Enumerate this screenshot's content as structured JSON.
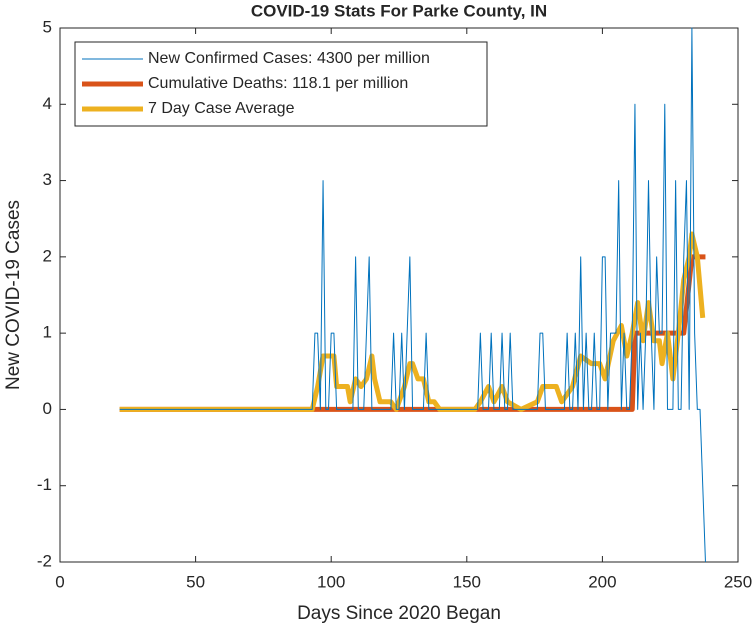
{
  "chart_data": {
    "type": "line",
    "title": "COVID-19 Stats For Parke County, IN",
    "xlabel": "Days Since 2020 Began",
    "ylabel": "New COVID-19 Cases",
    "xlim": [
      0,
      250
    ],
    "xticks": [
      0,
      50,
      100,
      150,
      200,
      250
    ],
    "ylim": [
      -2,
      5
    ],
    "yticks": [
      -2,
      -1,
      0,
      1,
      2,
      3,
      4,
      5
    ],
    "legend": "upper-left",
    "series": [
      {
        "name": "New Confirmed Cases: 4300 per million",
        "color": "#0072BD",
        "width": 1,
        "x": [
          22,
          93,
          94,
          95,
          96,
          97,
          98,
          99,
          100,
          101,
          102,
          103,
          104,
          105,
          106,
          107,
          108,
          109,
          110,
          111,
          112,
          113,
          114,
          115,
          116,
          117,
          118,
          119,
          120,
          121,
          122,
          123,
          124,
          125,
          126,
          127,
          128,
          129,
          130,
          131,
          132,
          133,
          134,
          135,
          136,
          137,
          138,
          139,
          140,
          141,
          142,
          143,
          144,
          145,
          146,
          147,
          148,
          149,
          150,
          151,
          152,
          153,
          154,
          155,
          156,
          157,
          158,
          159,
          160,
          161,
          162,
          163,
          164,
          165,
          166,
          167,
          168,
          169,
          170,
          171,
          172,
          173,
          174,
          175,
          176,
          177,
          178,
          179,
          180,
          181,
          182,
          183,
          184,
          185,
          186,
          187,
          188,
          189,
          190,
          191,
          192,
          193,
          194,
          195,
          196,
          197,
          198,
          199,
          200,
          201,
          202,
          203,
          204,
          205,
          206,
          207,
          208,
          209,
          210,
          211,
          212,
          213,
          214,
          215,
          216,
          217,
          218,
          219,
          220,
          221,
          222,
          223,
          224,
          225,
          226,
          227,
          228,
          229,
          230,
          231,
          232,
          233,
          234,
          235,
          236,
          237,
          238
        ],
        "values": [
          0,
          0,
          1,
          1,
          0,
          3,
          0,
          0,
          1,
          1,
          0,
          0,
          0,
          0,
          0,
          0,
          0,
          2,
          0,
          0,
          0,
          1,
          2,
          0,
          0,
          0,
          0,
          0,
          0,
          0,
          0,
          1,
          0,
          0,
          1,
          0,
          1,
          2,
          0,
          0,
          0,
          0,
          0,
          1,
          0,
          0,
          0,
          0,
          0,
          0,
          0,
          0,
          0,
          0,
          0,
          0,
          0,
          0,
          0,
          0,
          0,
          0,
          0,
          1,
          0,
          0,
          0,
          1,
          0,
          0,
          0,
          1,
          0,
          0,
          1,
          0,
          0,
          0,
          0,
          0,
          0,
          0,
          0,
          0,
          0,
          1,
          1,
          0,
          0,
          0,
          0,
          0,
          0,
          0,
          0,
          1,
          0,
          0,
          1,
          0,
          2,
          0,
          1,
          0,
          0,
          1,
          0,
          0,
          2,
          2,
          0,
          1,
          1,
          1,
          3,
          0,
          1,
          0,
          0,
          1,
          4,
          0,
          1,
          0,
          1,
          3,
          1,
          0,
          2,
          1,
          1,
          4,
          0,
          0,
          0,
          3,
          0,
          0,
          2,
          3,
          0,
          5,
          1,
          0,
          0,
          -1,
          -2
        ]
      },
      {
        "name": "Cumulative Deaths: 118.1 per million",
        "color": "#D95319",
        "width": 5,
        "x": [
          22,
          211,
          212,
          230,
          233,
          238
        ],
        "values": [
          0,
          0,
          1,
          1,
          2,
          2
        ]
      },
      {
        "name": "7 Day Case Average",
        "color": "#EDB120",
        "width": 5,
        "x": [
          22,
          93,
          95,
          97,
          101,
          102,
          106,
          107,
          109,
          111,
          113,
          115,
          116,
          118,
          122,
          124,
          125,
          127,
          129,
          130,
          132,
          134,
          136,
          138,
          140,
          153,
          155,
          158,
          160,
          163,
          165,
          170,
          176,
          178,
          183,
          185,
          189,
          192,
          196,
          199,
          201,
          204,
          207,
          209,
          211,
          213,
          215,
          217,
          219,
          221,
          222,
          224,
          226,
          228,
          230,
          232,
          233,
          235,
          237
        ],
        "values": [
          0,
          0,
          0.3,
          0.7,
          0.7,
          0.3,
          0.3,
          0.1,
          0.4,
          0.3,
          0.4,
          0.7,
          0.4,
          0.1,
          0.1,
          0,
          0.1,
          0.3,
          0.6,
          0.6,
          0.4,
          0.4,
          0.1,
          0.1,
          0,
          0,
          0.1,
          0.3,
          0.1,
          0.3,
          0.1,
          0,
          0.1,
          0.3,
          0.3,
          0.1,
          0.3,
          0.7,
          0.6,
          0.6,
          0.4,
          0.9,
          1.1,
          0.7,
          1.0,
          1.4,
          0.9,
          1.4,
          0.9,
          0.9,
          0.6,
          1.0,
          0.4,
          1.0,
          1.7,
          2.0,
          2.3,
          2.0,
          1.2
        ]
      }
    ]
  }
}
